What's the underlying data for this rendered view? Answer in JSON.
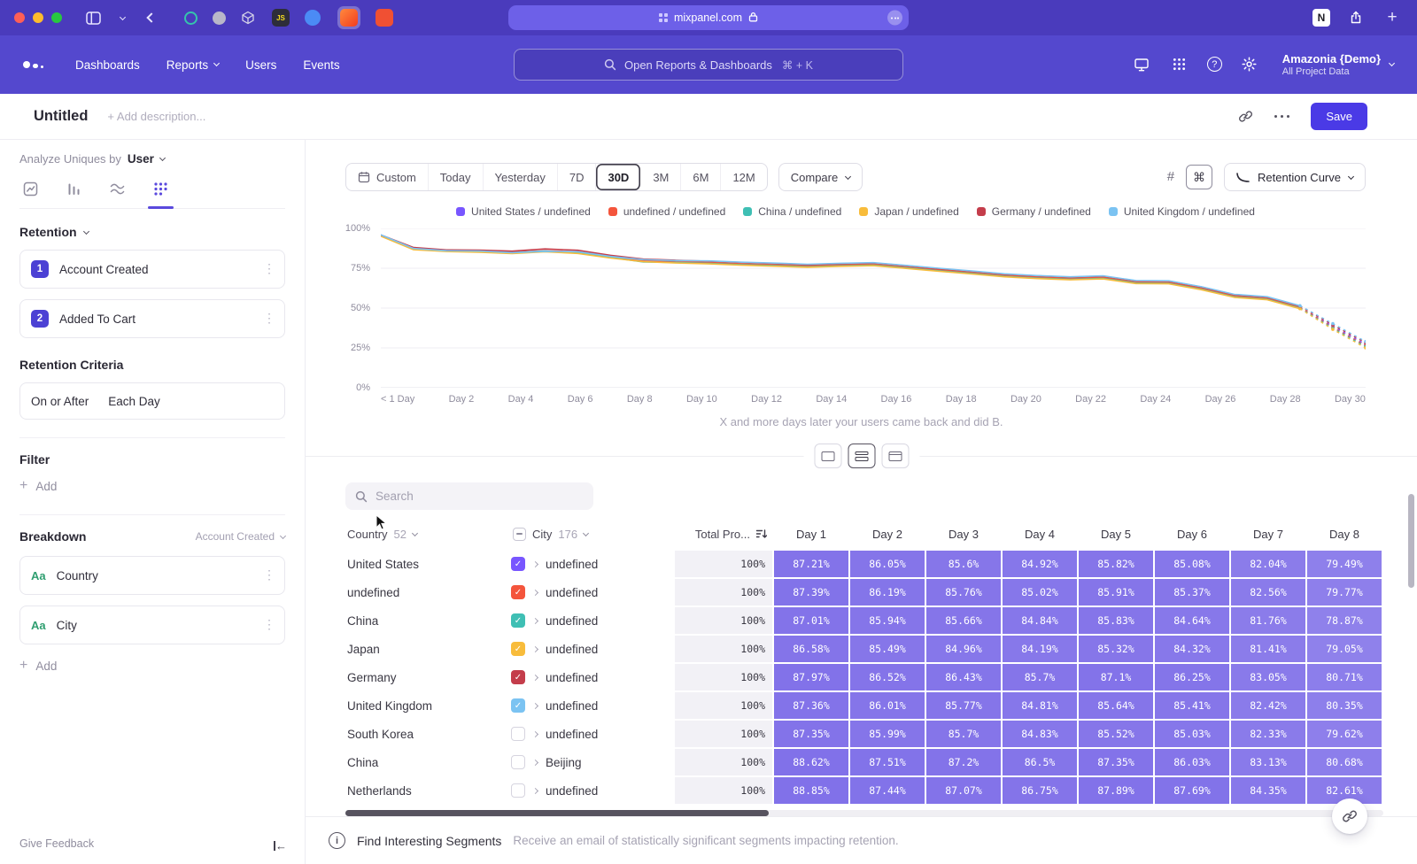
{
  "colors": {
    "browser_bar": "#4a3bbc",
    "app_header": "#5448ce",
    "save_button": "#4a3ae6",
    "accent": "#5a49dd",
    "table_cell_purple": "#614de3",
    "traffic_red": "#ff5f57",
    "traffic_yellow": "#febc2e",
    "traffic_green": "#28c840"
  },
  "browser": {
    "url": "mixpanel.com",
    "notion_label": "N",
    "js_label": "JS"
  },
  "app_header": {
    "nav": [
      "Dashboards",
      "Reports",
      "Users",
      "Events"
    ],
    "search_placeholder": "Open Reports & Dashboards",
    "search_shortcut": "⌘ + K",
    "project_name": "Amazonia {Demo}",
    "project_scope": "All Project Data"
  },
  "page_header": {
    "title": "Untitled",
    "description_placeholder": "+ Add description...",
    "save_label": "Save"
  },
  "sidebar": {
    "analyze_label": "Analyze Uniques by",
    "analyze_value": "User",
    "section_title": "Retention",
    "steps": [
      {
        "num": "1",
        "label": "Account Created"
      },
      {
        "num": "2",
        "label": "Added To Cart"
      }
    ],
    "criteria_title": "Retention Criteria",
    "criteria_value_1": "On or After",
    "criteria_value_2": "Each Day",
    "filter_title": "Filter",
    "add_label": "Add",
    "breakdown_title": "Breakdown",
    "breakdown_scope": "Account Created",
    "breakdowns": [
      {
        "type": "Aa",
        "label": "Country"
      },
      {
        "type": "Aa",
        "label": "City"
      }
    ],
    "give_feedback": "Give Feedback"
  },
  "toolbar": {
    "date_ranges": [
      "Custom",
      "Today",
      "Yesterday",
      "7D",
      "30D",
      "3M",
      "6M",
      "12M"
    ],
    "selected_range": "30D",
    "compare_label": "Compare",
    "chart_type_label": "Retention Curve",
    "selected_view": "split"
  },
  "chart_data": {
    "type": "line",
    "title": "",
    "caption": "X and more days later your users came back and did B.",
    "ylim": [
      0,
      100
    ],
    "y_ticks": [
      "0%",
      "25%",
      "50%",
      "75%",
      "100%"
    ],
    "x_tick_labels": [
      "< 1 Day",
      "Day 2",
      "Day 4",
      "Day 6",
      "Day 8",
      "Day 10",
      "Day 12",
      "Day 14",
      "Day 16",
      "Day 18",
      "Day 20",
      "Day 22",
      "Day 24",
      "Day 26",
      "Day 28",
      "Day 30"
    ],
    "dashed_from_index": 28,
    "grid": "horizontal",
    "legend_position": "top-center",
    "series": [
      {
        "name": "United States / undefined",
        "color": "#7856ff",
        "values": [
          95.6,
          87.2,
          86.1,
          85.6,
          84.9,
          85.8,
          85.1,
          82.0,
          79.5,
          79.0,
          78.4,
          77.6,
          77.0,
          76.3,
          76.9,
          77.3,
          75.6,
          73.8,
          72.1,
          70.3,
          69.2,
          68.4,
          69.0,
          66.1,
          65.9,
          62.2,
          57.4,
          55.9,
          50.3,
          38.6,
          27.2
        ]
      },
      {
        "name": "undefined / undefined",
        "color": "#f4553c",
        "values": [
          95.8,
          87.4,
          86.2,
          85.8,
          85.0,
          85.9,
          85.4,
          82.6,
          79.8,
          79.2,
          78.6,
          77.8,
          77.2,
          76.5,
          77.1,
          77.5,
          75.8,
          74.0,
          72.3,
          70.5,
          69.4,
          68.6,
          69.2,
          66.3,
          66.1,
          62.4,
          57.6,
          56.1,
          50.5,
          37.8,
          26.4
        ]
      },
      {
        "name": "China / undefined",
        "color": "#3fbfb4",
        "values": [
          95.3,
          87.0,
          85.9,
          85.7,
          84.8,
          85.8,
          84.6,
          81.8,
          78.9,
          78.6,
          78.0,
          77.2,
          76.6,
          75.9,
          76.5,
          76.9,
          75.2,
          73.4,
          71.7,
          69.9,
          68.8,
          68.0,
          68.6,
          65.7,
          65.5,
          61.8,
          57.0,
          55.5,
          49.9,
          37.2,
          25.8
        ]
      },
      {
        "name": "Japan / undefined",
        "color": "#f8bc3b",
        "values": [
          95.1,
          86.6,
          85.5,
          85.0,
          84.2,
          85.3,
          84.3,
          81.4,
          79.1,
          78.3,
          77.7,
          76.9,
          76.3,
          75.6,
          76.2,
          76.6,
          74.9,
          73.1,
          71.4,
          69.6,
          68.5,
          67.7,
          68.3,
          65.4,
          65.2,
          61.5,
          56.7,
          55.2,
          49.6,
          36.6,
          25.0
        ]
      },
      {
        "name": "Germany / undefined",
        "color": "#c43d4b",
        "values": [
          95.9,
          88.0,
          86.5,
          86.4,
          85.7,
          87.1,
          86.3,
          83.1,
          80.7,
          80.0,
          79.4,
          78.6,
          78.0,
          77.3,
          77.9,
          78.3,
          76.6,
          74.8,
          73.1,
          71.3,
          70.2,
          69.4,
          70.0,
          67.1,
          66.9,
          63.2,
          58.4,
          56.9,
          51.3,
          39.4,
          28.2
        ]
      },
      {
        "name": "United Kingdom / undefined",
        "color": "#7bc3f2",
        "values": [
          96.0,
          87.4,
          86.0,
          85.8,
          84.8,
          85.6,
          85.4,
          82.4,
          80.4,
          79.8,
          79.6,
          78.8,
          78.2,
          77.5,
          78.1,
          78.5,
          76.8,
          75.0,
          73.3,
          71.5,
          70.4,
          69.6,
          70.2,
          67.3,
          67.1,
          63.4,
          58.6,
          57.1,
          51.5,
          40.2,
          29.0
        ]
      }
    ]
  },
  "table": {
    "search_placeholder": "Search",
    "col1": {
      "label": "Country",
      "count": "52"
    },
    "col2": {
      "label": "City",
      "count": "176"
    },
    "total_col": "Total Pro...",
    "day_cols": [
      "Day 1",
      "Day 2",
      "Day 3",
      "Day 4",
      "Day 5",
      "Day 6",
      "Day 7",
      "Day 8"
    ],
    "rows": [
      {
        "country": "United States",
        "city": "undefined",
        "checked": true,
        "color": "#7856ff",
        "total": "100%",
        "values": [
          "87.21%",
          "86.05%",
          "85.6%",
          "84.92%",
          "85.82%",
          "85.08%",
          "82.04%",
          "79.49%"
        ]
      },
      {
        "country": "undefined",
        "city": "undefined",
        "checked": true,
        "color": "#f4553c",
        "total": "100%",
        "values": [
          "87.39%",
          "86.19%",
          "85.76%",
          "85.02%",
          "85.91%",
          "85.37%",
          "82.56%",
          "79.77%"
        ]
      },
      {
        "country": "China",
        "city": "undefined",
        "checked": true,
        "color": "#3fbfb4",
        "total": "100%",
        "values": [
          "87.01%",
          "85.94%",
          "85.66%",
          "84.84%",
          "85.83%",
          "84.64%",
          "81.76%",
          "78.87%"
        ]
      },
      {
        "country": "Japan",
        "city": "undefined",
        "checked": true,
        "color": "#f8bc3b",
        "total": "100%",
        "values": [
          "86.58%",
          "85.49%",
          "84.96%",
          "84.19%",
          "85.32%",
          "84.32%",
          "81.41%",
          "79.05%"
        ]
      },
      {
        "country": "Germany",
        "city": "undefined",
        "checked": true,
        "color": "#c43d4b",
        "total": "100%",
        "values": [
          "87.97%",
          "86.52%",
          "86.43%",
          "85.7%",
          "87.1%",
          "86.25%",
          "83.05%",
          "80.71%"
        ]
      },
      {
        "country": "United Kingdom",
        "city": "undefined",
        "checked": true,
        "color": "#7bc3f2",
        "total": "100%",
        "values": [
          "87.36%",
          "86.01%",
          "85.77%",
          "84.81%",
          "85.64%",
          "85.41%",
          "82.42%",
          "80.35%"
        ]
      },
      {
        "country": "South Korea",
        "city": "undefined",
        "checked": false,
        "color": "",
        "total": "100%",
        "values": [
          "87.35%",
          "85.99%",
          "85.7%",
          "84.83%",
          "85.52%",
          "85.03%",
          "82.33%",
          "79.62%"
        ]
      },
      {
        "country": "China",
        "city": "Beijing",
        "checked": false,
        "color": "",
        "total": "100%",
        "values": [
          "88.62%",
          "87.51%",
          "87.2%",
          "86.5%",
          "87.35%",
          "86.03%",
          "83.13%",
          "80.68%"
        ]
      },
      {
        "country": "Netherlands",
        "city": "undefined",
        "checked": false,
        "color": "",
        "total": "100%",
        "values": [
          "88.85%",
          "87.44%",
          "87.07%",
          "86.75%",
          "87.89%",
          "87.69%",
          "84.35%",
          "82.61%"
        ]
      }
    ]
  },
  "footer": {
    "title": "Find Interesting Segments",
    "subtitle": "Receive an email of statistically significant segments impacting retention."
  },
  "icons": {
    "search": "magnifier",
    "lock": "padlock",
    "settings": "gear",
    "help": "question-circle",
    "apps": "dot-grid",
    "link": "chain",
    "kebab": "vertical-dots",
    "sort": "arrow-down-bars",
    "calendar": "calendar",
    "command": "⌘",
    "add": "plus"
  }
}
